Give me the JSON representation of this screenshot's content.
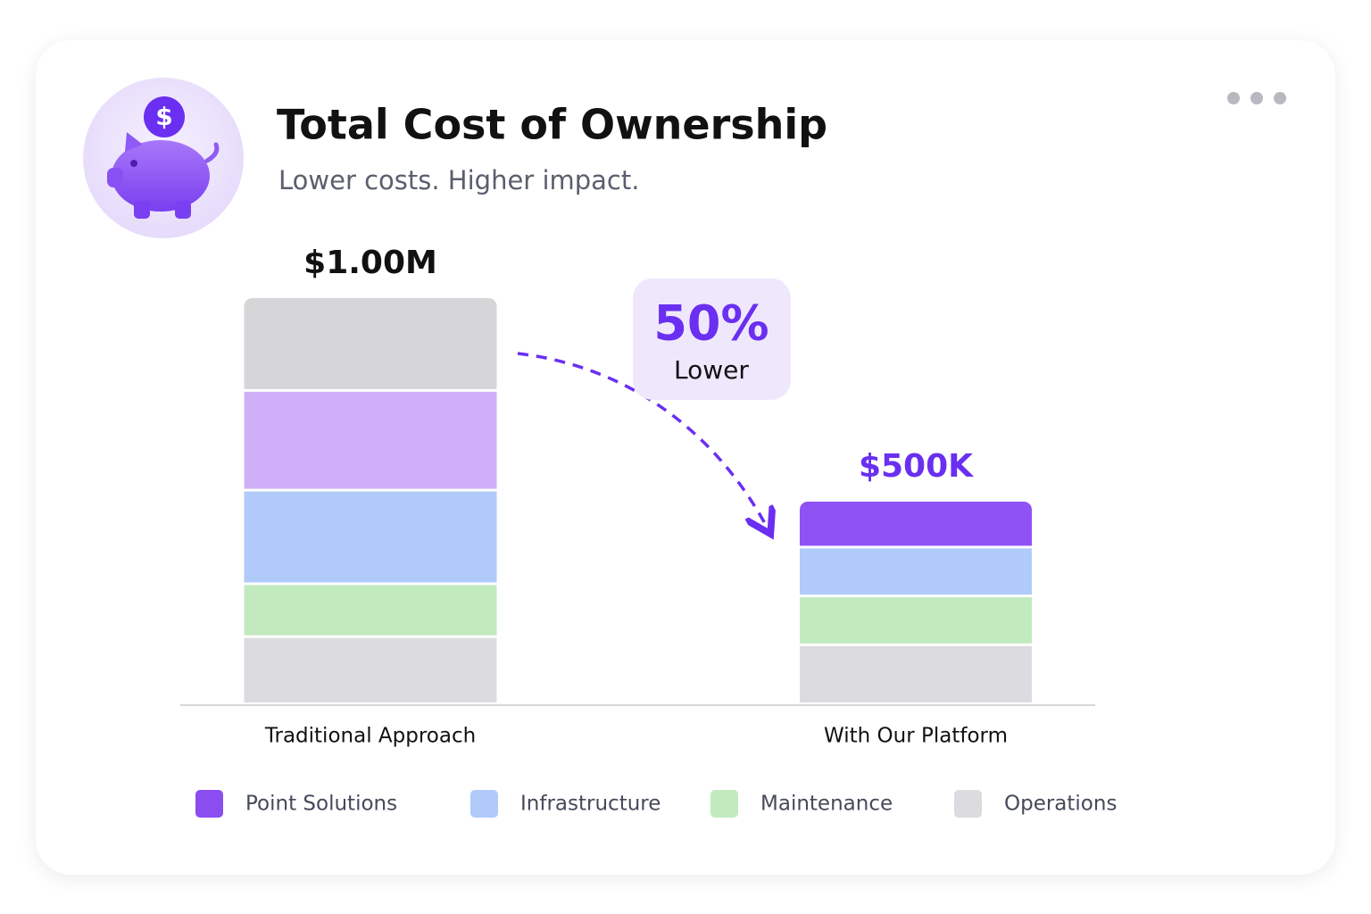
{
  "chart_data": {
    "type": "stacked-bar",
    "title": "Total Cost of Ownership",
    "subtitle": "Lower costs. Higher impact.",
    "icon_symbol": "$",
    "categories": [
      "Traditional Approach",
      "With Our Platform"
    ],
    "series": [
      {
        "name": "Operations",
        "color": "#dcdce0",
        "values": [
          165000,
          145000
        ]
      },
      {
        "name": "Maintenance",
        "color": "#c2eabf",
        "values": [
          130000,
          120000
        ]
      },
      {
        "name": "Infrastructure",
        "color": "#b0cbfa",
        "values": [
          230000,
          120000
        ]
      },
      {
        "name": "Point Solutions",
        "color": "#8b4cf0",
        "colors": [
          "#cfb0f8",
          "#8e52f5"
        ],
        "values": [
          245000,
          115000
        ]
      },
      {
        "name": null,
        "color": "#d6d6d8",
        "values": [
          230000,
          null
        ]
      }
    ],
    "totals": [
      1000000,
      500000
    ],
    "total_labels": [
      "$1.00M",
      "$500K"
    ],
    "total_label_colors": [
      "#111111",
      "#6a2ff0"
    ],
    "annotation": {
      "value": 50,
      "label": "50%",
      "text": "Lower"
    }
  }
}
